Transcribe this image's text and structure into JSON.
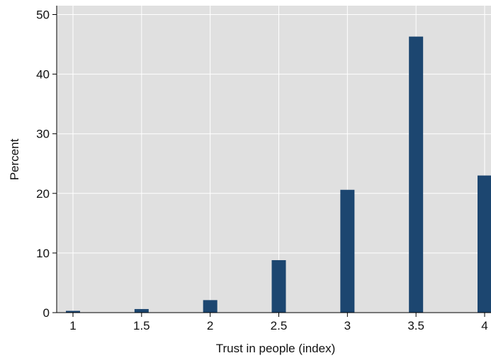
{
  "chart_data": {
    "type": "bar",
    "title": "",
    "xlabel": "Trust in people (index)",
    "ylabel": "Percent",
    "x": [
      1,
      1.5,
      2,
      2.5,
      3,
      3.5,
      4
    ],
    "values": [
      0.3,
      0.6,
      2.1,
      8.8,
      20.6,
      46.3,
      23.0
    ],
    "x_ticks": [
      "1",
      "1.5",
      "2",
      "2.5",
      "3",
      "3.5",
      "4"
    ],
    "y_ticks": [
      "0",
      "10",
      "20",
      "30",
      "40",
      "50"
    ],
    "xlim": [
      1,
      4
    ],
    "ylim": [
      0,
      50
    ],
    "grid": true,
    "legend": "none",
    "colors": {
      "bar": "#1c4670",
      "plot_background": "#e0e0e0",
      "grid": "#ffffff"
    }
  }
}
